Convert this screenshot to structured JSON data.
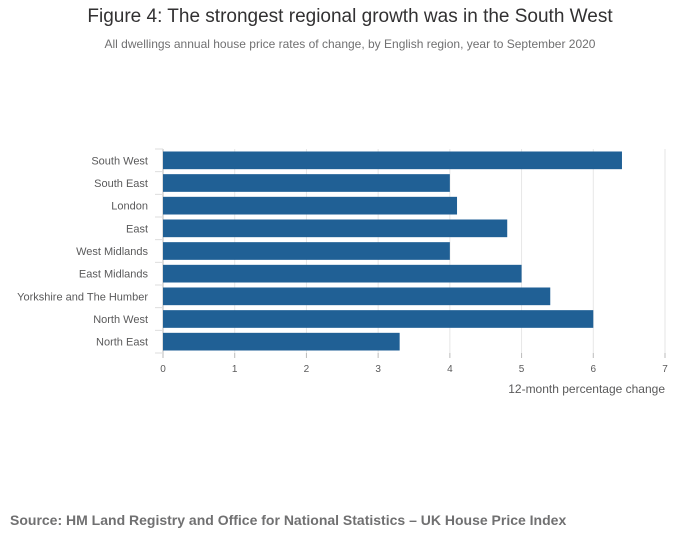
{
  "chart_data": {
    "type": "bar",
    "orientation": "horizontal",
    "title": "Figure 4: The strongest regional growth was in the South West",
    "subtitle": "All dwellings annual house price rates of change, by English region, year to September 2020",
    "categories": [
      "South West",
      "South East",
      "London",
      "East",
      "West Midlands",
      "East Midlands",
      "Yorkshire and The Humber",
      "North West",
      "North East"
    ],
    "values": [
      6.4,
      4.0,
      4.1,
      4.8,
      4.0,
      5.0,
      5.4,
      6.0,
      3.3
    ],
    "xlabel": "12-month percentage change",
    "ylabel": "",
    "xlim": [
      0,
      7
    ],
    "xticks": [
      "0",
      "1",
      "2",
      "3",
      "4",
      "5",
      "6",
      "7"
    ],
    "grid": true,
    "bar_color": "#206095",
    "source": "Source: HM Land Registry and Office for National Statistics – UK House Price Index"
  }
}
